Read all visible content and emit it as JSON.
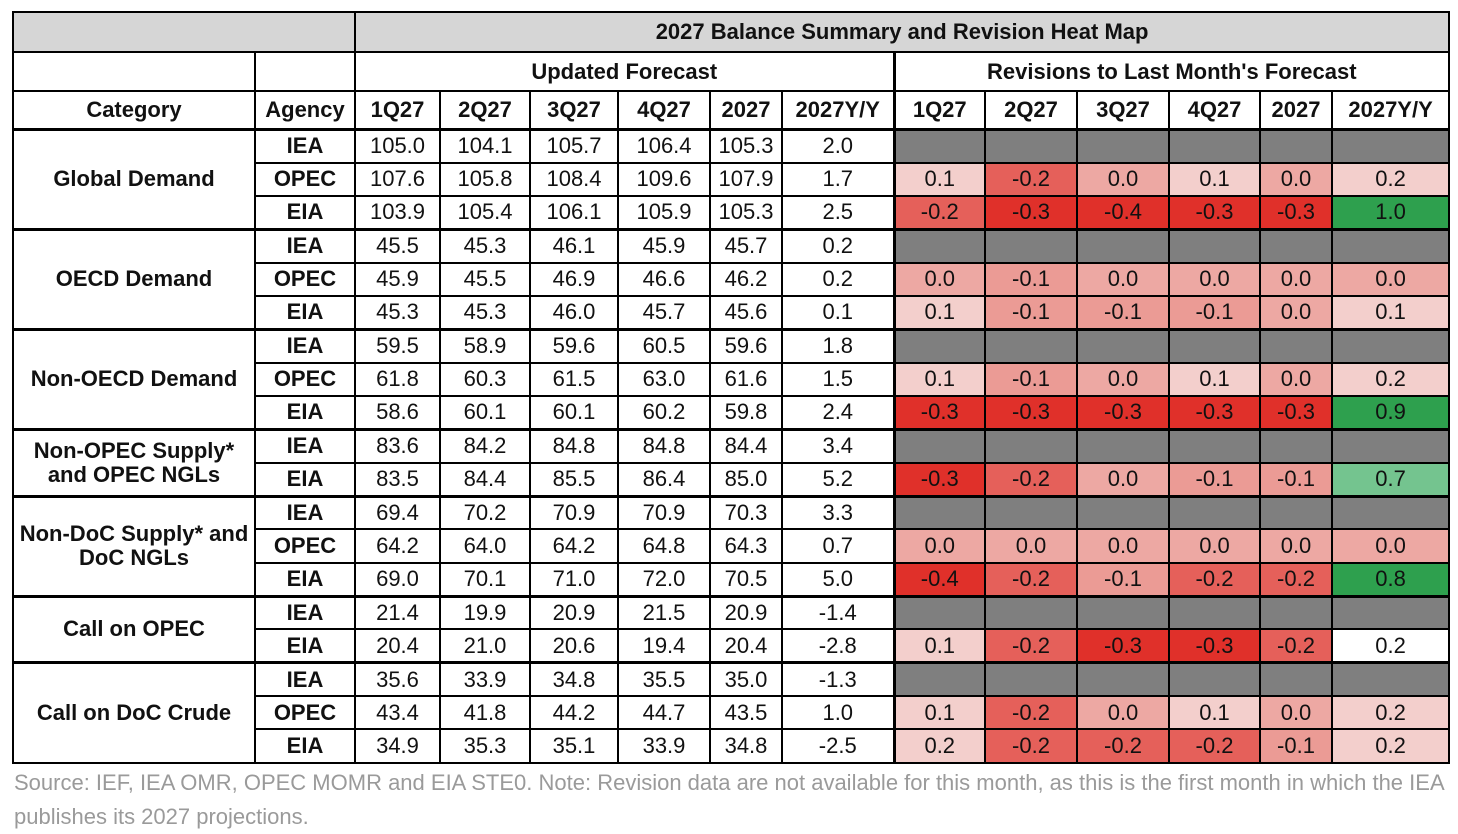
{
  "chart_data": {
    "type": "table",
    "title": "2027 Balance Summary and Revision Heat Map",
    "group_headers": {
      "updated": "Updated Forecast",
      "revisions": "Revisions to Last Month's Forecast"
    },
    "column_headers": [
      "Category",
      "Agency",
      "1Q27",
      "2Q27",
      "3Q27",
      "4Q27",
      "2027",
      "2027Y/Y",
      "1Q27",
      "2Q27",
      "3Q27",
      "4Q27",
      "2027",
      "2027Y/Y"
    ],
    "categories": [
      {
        "name": "Global Demand",
        "rows": [
          {
            "agency": "IEA",
            "forecast": [
              "105.0",
              "104.1",
              "105.7",
              "106.4",
              "105.3",
              "2.0"
            ],
            "revisions": null
          },
          {
            "agency": "OPEC",
            "forecast": [
              "107.6",
              "105.8",
              "108.4",
              "109.6",
              "107.9",
              "1.7"
            ],
            "revisions": [
              "0.1",
              "-0.2",
              "0.0",
              "0.1",
              "0.0",
              "0.2"
            ]
          },
          {
            "agency": "EIA",
            "forecast": [
              "103.9",
              "105.4",
              "106.1",
              "105.9",
              "105.3",
              "2.5"
            ],
            "revisions": [
              "-0.2",
              "-0.3",
              "-0.4",
              "-0.3",
              "-0.3",
              "1.0"
            ]
          }
        ]
      },
      {
        "name": "OECD Demand",
        "rows": [
          {
            "agency": "IEA",
            "forecast": [
              "45.5",
              "45.3",
              "46.1",
              "45.9",
              "45.7",
              "0.2"
            ],
            "revisions": null
          },
          {
            "agency": "OPEC",
            "forecast": [
              "45.9",
              "45.5",
              "46.9",
              "46.6",
              "46.2",
              "0.2"
            ],
            "revisions": [
              "0.0",
              "-0.1",
              "0.0",
              "0.0",
              "0.0",
              "0.0"
            ]
          },
          {
            "agency": "EIA",
            "forecast": [
              "45.3",
              "45.3",
              "46.0",
              "45.7",
              "45.6",
              "0.1"
            ],
            "revisions": [
              "0.1",
              "-0.1",
              "-0.1",
              "-0.1",
              "0.0",
              "0.1"
            ]
          }
        ]
      },
      {
        "name": "Non-OECD Demand",
        "rows": [
          {
            "agency": "IEA",
            "forecast": [
              "59.5",
              "58.9",
              "59.6",
              "60.5",
              "59.6",
              "1.8"
            ],
            "revisions": null
          },
          {
            "agency": "OPEC",
            "forecast": [
              "61.8",
              "60.3",
              "61.5",
              "63.0",
              "61.6",
              "1.5"
            ],
            "revisions": [
              "0.1",
              "-0.1",
              "0.0",
              "0.1",
              "0.0",
              "0.2"
            ]
          },
          {
            "agency": "EIA",
            "forecast": [
              "58.6",
              "60.1",
              "60.1",
              "60.2",
              "59.8",
              "2.4"
            ],
            "revisions": [
              "-0.3",
              "-0.3",
              "-0.3",
              "-0.3",
              "-0.3",
              "0.9"
            ]
          }
        ]
      },
      {
        "name": "Non-OPEC Supply* and OPEC NGLs",
        "rows": [
          {
            "agency": "IEA",
            "forecast": [
              "83.6",
              "84.2",
              "84.8",
              "84.8",
              "84.4",
              "3.4"
            ],
            "revisions": null
          },
          {
            "agency": "EIA",
            "forecast": [
              "83.5",
              "84.4",
              "85.5",
              "86.4",
              "85.0",
              "5.2"
            ],
            "revisions": [
              "-0.3",
              "-0.2",
              "0.0",
              "-0.1",
              "-0.1",
              "0.7"
            ]
          }
        ]
      },
      {
        "name": "Non-DoC Supply* and DoC NGLs",
        "rows": [
          {
            "agency": "IEA",
            "forecast": [
              "69.4",
              "70.2",
              "70.9",
              "70.9",
              "70.3",
              "3.3"
            ],
            "revisions": null
          },
          {
            "agency": "OPEC",
            "forecast": [
              "64.2",
              "64.0",
              "64.2",
              "64.8",
              "64.3",
              "0.7"
            ],
            "revisions": [
              "0.0",
              "0.0",
              "0.0",
              "0.0",
              "0.0",
              "0.0"
            ]
          },
          {
            "agency": "EIA",
            "forecast": [
              "69.0",
              "70.1",
              "71.0",
              "72.0",
              "70.5",
              "5.0"
            ],
            "revisions": [
              "-0.4",
              "-0.2",
              "-0.1",
              "-0.2",
              "-0.2",
              "0.8"
            ]
          }
        ]
      },
      {
        "name": "Call on OPEC",
        "rows": [
          {
            "agency": "IEA",
            "forecast": [
              "21.4",
              "19.9",
              "20.9",
              "21.5",
              "20.9",
              "-1.4"
            ],
            "revisions": null
          },
          {
            "agency": "EIA",
            "forecast": [
              "20.4",
              "21.0",
              "20.6",
              "19.4",
              "20.4",
              "-2.8"
            ],
            "revisions": [
              "0.1",
              "-0.2",
              "-0.3",
              "-0.3",
              "-0.2",
              "0.2"
            ]
          }
        ]
      },
      {
        "name": "Call on DoC Crude",
        "rows": [
          {
            "agency": "IEA",
            "forecast": [
              "35.6",
              "33.9",
              "34.8",
              "35.5",
              "35.0",
              "-1.3"
            ],
            "revisions": null
          },
          {
            "agency": "OPEC",
            "forecast": [
              "43.4",
              "41.8",
              "44.2",
              "44.7",
              "43.5",
              "1.0"
            ],
            "revisions": [
              "0.1",
              "-0.2",
              "0.0",
              "0.1",
              "0.0",
              "0.2"
            ]
          },
          {
            "agency": "EIA",
            "forecast": [
              "34.9",
              "35.3",
              "35.1",
              "33.9",
              "34.8",
              "-2.5"
            ],
            "revisions": [
              "0.2",
              "-0.2",
              "-0.2",
              "-0.2",
              "-0.1",
              "0.2"
            ]
          }
        ]
      }
    ],
    "colors": {
      "na_cell": "#7f7f7f",
      "header_grey": "#d6d6d6",
      "neg_strong": "#e0302a",
      "neg_mid": "#e5605a",
      "neg_light": "#eb9b95",
      "zero": "#eda8a3",
      "pos_light": "#f3cfcc",
      "pos_green": "#2ea04e",
      "pos_green_light": "#74c48f",
      "white": "#ffffff"
    }
  },
  "footer": {
    "source_note": "Source: IEF, IEA OMR, OPEC MOMR and EIA STE0. Note: Revision data are not available for this month, as this is the first month in which the IEA publishes its 2027 projections."
  }
}
